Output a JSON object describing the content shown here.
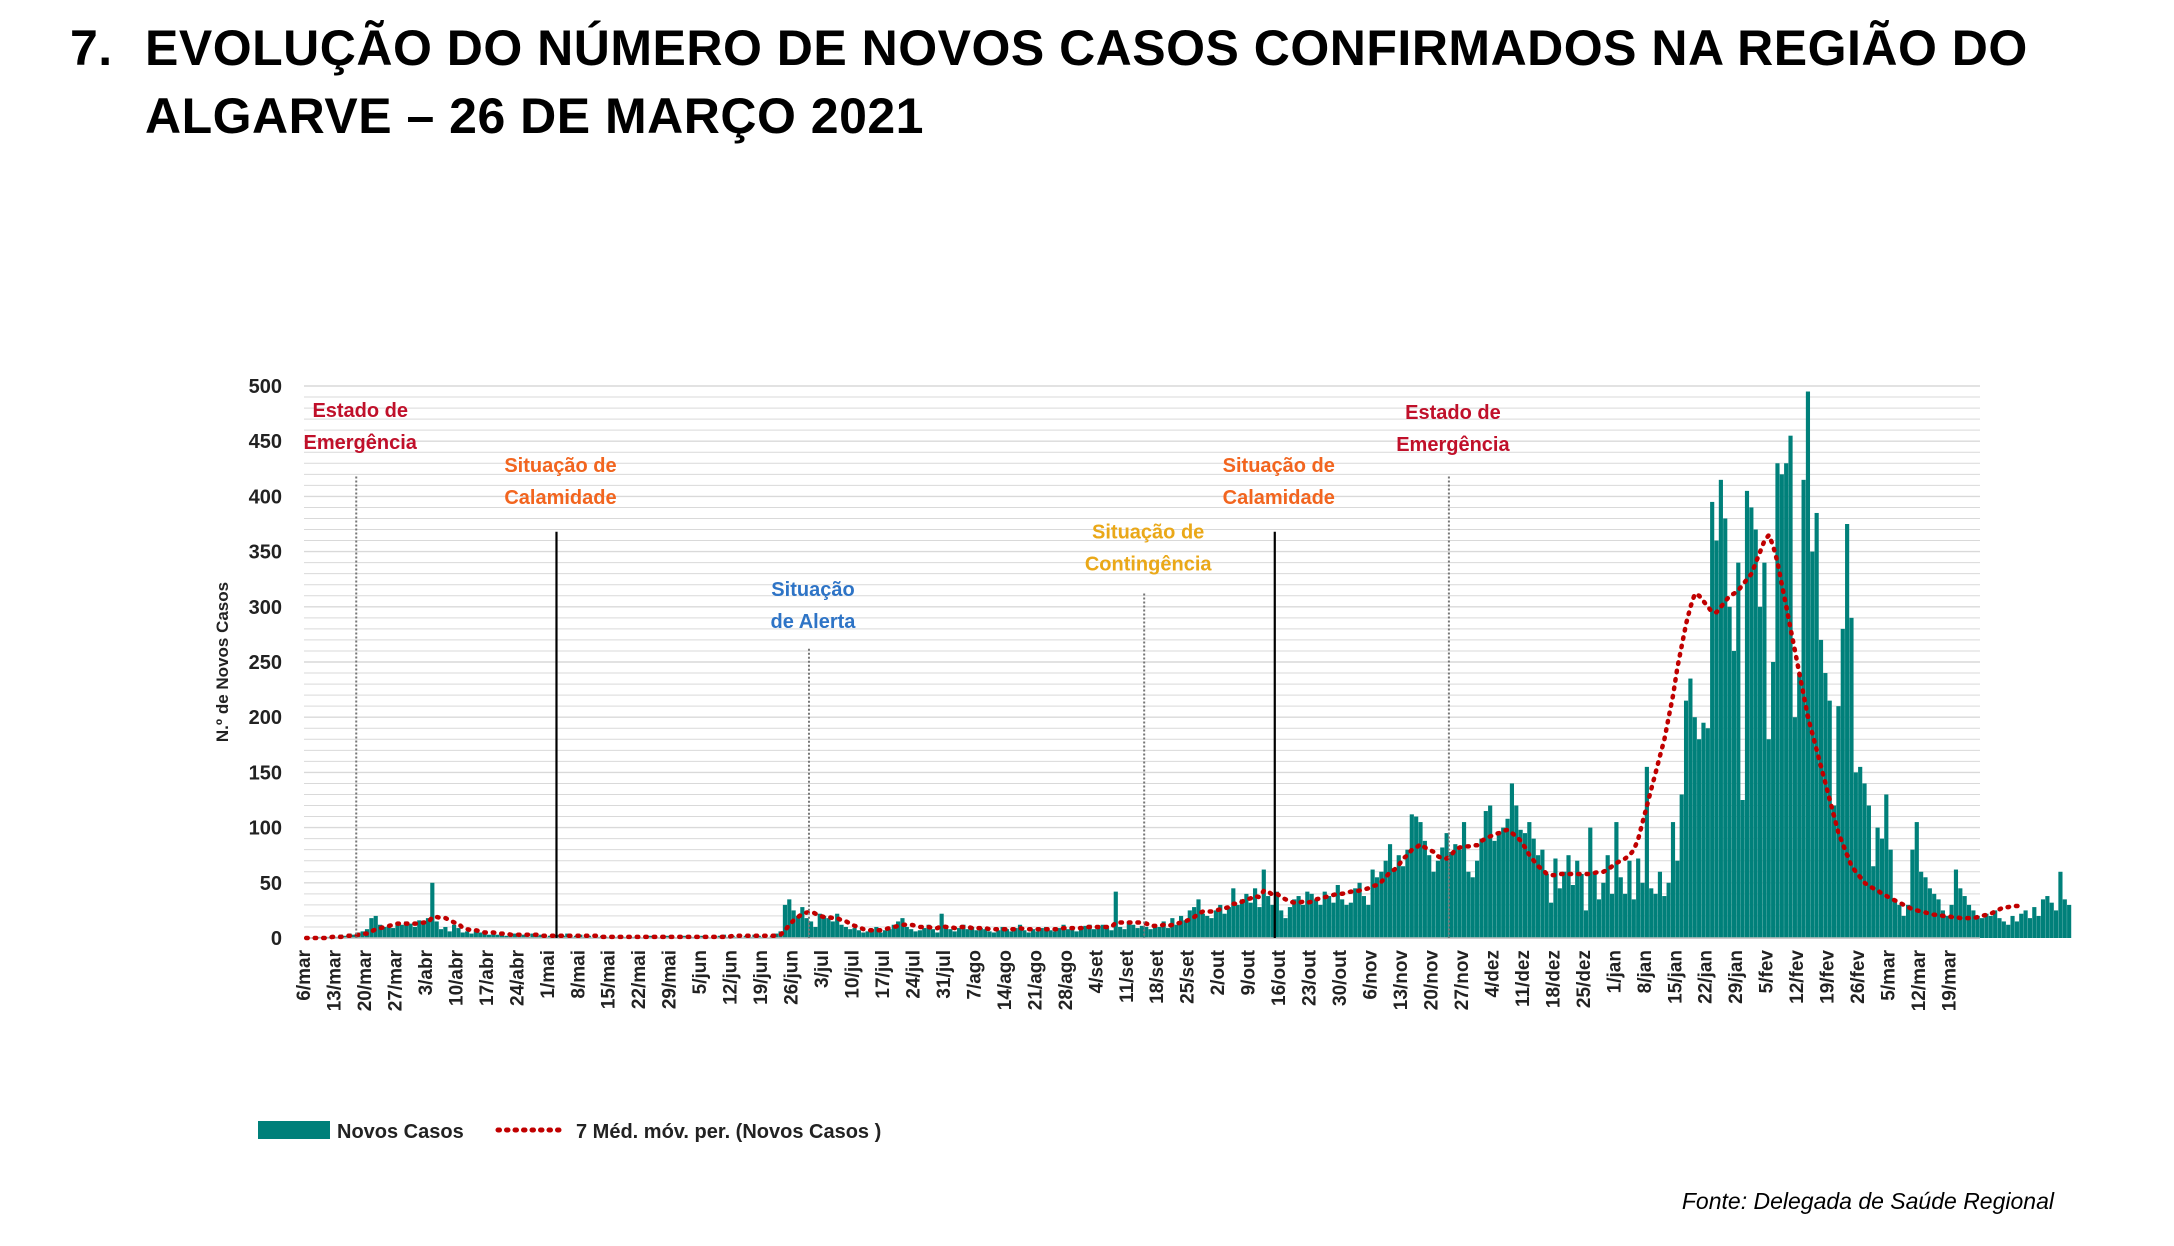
{
  "page": {
    "number": "7.",
    "title": "EVOLUÇÃO DO NÚMERO DE NOVOS CASOS CONFIRMADOS NA REGIÃO DO ALGARVE – 26 DE MARÇO 2021",
    "source": "Fonte: Delegada de Saúde Regional"
  },
  "colors": {
    "bars": "#00807A",
    "moving_average": "#C00000",
    "grid": "#D9D9D9",
    "emergencia": "#C0102A",
    "calamidade": "#F2651F",
    "alerta": "#2E74C6",
    "contingencia": "#EAA818"
  },
  "chart_data": {
    "type": "bar",
    "ylabel": "N.º de Novos Casos",
    "xlabel": "",
    "ylim": [
      0,
      500
    ],
    "yticks": [
      0,
      50,
      100,
      150,
      200,
      250,
      300,
      350,
      400,
      450,
      500
    ],
    "grid": true,
    "legend_position": "bottom-left",
    "x_start": "2020-03-06",
    "x_end": "2021-03-25",
    "x_tick_labels": [
      "6/mar",
      "13/mar",
      "20/mar",
      "27/mar",
      "3/abr",
      "10/abr",
      "17/abr",
      "24/abr",
      "1/mai",
      "8/mai",
      "15/mai",
      "22/mai",
      "29/mai",
      "5/jun",
      "12/jun",
      "19/jun",
      "26/jun",
      "3/jul",
      "10/jul",
      "17/jul",
      "24/jul",
      "31/jul",
      "7/ago",
      "14/ago",
      "21/ago",
      "28/ago",
      "4/set",
      "11/set",
      "18/set",
      "25/set",
      "2/out",
      "9/out",
      "16/out",
      "23/out",
      "30/out",
      "6/nov",
      "13/nov",
      "20/nov",
      "27/nov",
      "4/dez",
      "11/dez",
      "18/dez",
      "25/dez",
      "1/jan",
      "8/jan",
      "15/jan",
      "22/jan",
      "29/jan",
      "5/fev",
      "12/fev",
      "19/fev",
      "26/fev",
      "5/mar",
      "12/mar",
      "19/mar"
    ],
    "series": [
      {
        "name": "Novos Casos",
        "kind": "bar",
        "values": [
          0,
          0,
          0,
          1,
          0,
          1,
          2,
          1,
          3,
          2,
          4,
          3,
          5,
          6,
          8,
          18,
          20,
          12,
          10,
          11,
          9,
          14,
          12,
          15,
          13,
          10,
          16,
          14,
          18,
          50,
          15,
          8,
          10,
          6,
          12,
          9,
          5,
          6,
          4,
          7,
          5,
          4,
          3,
          5,
          3,
          4,
          2,
          3,
          4,
          2,
          3,
          1,
          4,
          2,
          3,
          1,
          2,
          1,
          3,
          2,
          4,
          1,
          2,
          3,
          1,
          2,
          0,
          1,
          2,
          1,
          0,
          1,
          2,
          1,
          0,
          1,
          1,
          0,
          1,
          2,
          1,
          0,
          1,
          2,
          1,
          0,
          1,
          2,
          0,
          1,
          1,
          2,
          1,
          0,
          1,
          2,
          3,
          1,
          2,
          1,
          0,
          2,
          1,
          3,
          2,
          1,
          0,
          2,
          4,
          6,
          30,
          35,
          25,
          20,
          28,
          18,
          15,
          10,
          22,
          20,
          18,
          15,
          22,
          12,
          10,
          8,
          9,
          7,
          5,
          6,
          8,
          10,
          5,
          7,
          8,
          12,
          15,
          18,
          10,
          8,
          6,
          7,
          9,
          12,
          8,
          5,
          22,
          10,
          8,
          6,
          9,
          12,
          8,
          10,
          7,
          9,
          8,
          6,
          5,
          7,
          10,
          8,
          6,
          9,
          12,
          7,
          5,
          8,
          6,
          9,
          10,
          7,
          6,
          9,
          12,
          8,
          10,
          6,
          9,
          11,
          12,
          8,
          10,
          12,
          9,
          7,
          42,
          10,
          8,
          15,
          12,
          9,
          11,
          10,
          8,
          12,
          10,
          15,
          9,
          18,
          12,
          20,
          16,
          25,
          28,
          35,
          22,
          20,
          18,
          25,
          30,
          22,
          28,
          45,
          30,
          35,
          40,
          32,
          45,
          28,
          62,
          38,
          30,
          42,
          25,
          18,
          28,
          35,
          38,
          30,
          42,
          40,
          35,
          30,
          42,
          38,
          32,
          48,
          35,
          30,
          32,
          45,
          50,
          38,
          30,
          62,
          55,
          60,
          70,
          85,
          62,
          75,
          65,
          80,
          112,
          110,
          105,
          88,
          75,
          60,
          70,
          82,
          95,
          78,
          85,
          80,
          105,
          60,
          55,
          70,
          90,
          115,
          120,
          88,
          95,
          100,
          108,
          140,
          120,
          98,
          95,
          105,
          90,
          75,
          80,
          58,
          32,
          72,
          45,
          60,
          75,
          48,
          70,
          58,
          25,
          100,
          60,
          35,
          50,
          75,
          40,
          105,
          55,
          40,
          70,
          35,
          72,
          50,
          155,
          45,
          40,
          60,
          38,
          50,
          105,
          70,
          130,
          215,
          235,
          200,
          180,
          195,
          190,
          395,
          360,
          415,
          380,
          300,
          260,
          340,
          125,
          405,
          390,
          370,
          300,
          340,
          180,
          250,
          430,
          420,
          430,
          455,
          200,
          240,
          415,
          495,
          350,
          385,
          270,
          240,
          215,
          120,
          210,
          280,
          375,
          290,
          150,
          155,
          140,
          120,
          65,
          100,
          90,
          130,
          80,
          35,
          30,
          20,
          30,
          80,
          105,
          60,
          55,
          45,
          40,
          35,
          25,
          20,
          30,
          62,
          45,
          38,
          30,
          25,
          20,
          18,
          22,
          20,
          25,
          18,
          15,
          12,
          20,
          15,
          22,
          25,
          18,
          28,
          20,
          35,
          38,
          32,
          25,
          60,
          35,
          30
        ]
      },
      {
        "name": "7 Méd. móv. per. (Novos Casos )",
        "kind": "line",
        "values": [
          0,
          0,
          0,
          0,
          0,
          0,
          1,
          1,
          1,
          2,
          2,
          2,
          3,
          4,
          4,
          6,
          8,
          9,
          10,
          11,
          12,
          13,
          13,
          13,
          13,
          13,
          13,
          14,
          14,
          19,
          19,
          18,
          18,
          16,
          14,
          13,
          9,
          8,
          7,
          7,
          6,
          5,
          5,
          5,
          4,
          4,
          4,
          3,
          3,
          3,
          3,
          3,
          3,
          3,
          2,
          2,
          2,
          2,
          2,
          2,
          2,
          2,
          2,
          2,
          2,
          2,
          2,
          2,
          1,
          1,
          1,
          1,
          1,
          1,
          1,
          1,
          1,
          1,
          1,
          1,
          1,
          1,
          1,
          1,
          1,
          1,
          1,
          1,
          1,
          1,
          1,
          1,
          1,
          1,
          1,
          1,
          1,
          1,
          2,
          2,
          2,
          2,
          2,
          2,
          2,
          2,
          2,
          2,
          2,
          3,
          7,
          12,
          16,
          19,
          22,
          23,
          24,
          22,
          20,
          19,
          19,
          18,
          18,
          16,
          15,
          13,
          11,
          10,
          8,
          7,
          7,
          7,
          7,
          8,
          9,
          10,
          11,
          12,
          12,
          12,
          11,
          10,
          10,
          10,
          9,
          9,
          11,
          10,
          10,
          9,
          10,
          10,
          10,
          9,
          9,
          9,
          9,
          8,
          8,
          8,
          8,
          8,
          8,
          8,
          9,
          8,
          8,
          8,
          8,
          8,
          8,
          8,
          8,
          8,
          9,
          9,
          9,
          9,
          9,
          10,
          10,
          10,
          10,
          10,
          10,
          10,
          14,
          14,
          14,
          14,
          14,
          14,
          14,
          13,
          11,
          11,
          11,
          12,
          11,
          12,
          13,
          14,
          15,
          17,
          19,
          22,
          24,
          24,
          24,
          25,
          26,
          27,
          28,
          31,
          31,
          33,
          35,
          36,
          38,
          37,
          43,
          42,
          39,
          40,
          37,
          35,
          33,
          32,
          32,
          33,
          32,
          33,
          35,
          36,
          37,
          38,
          39,
          40,
          40,
          41,
          42,
          42,
          43,
          44,
          45,
          47,
          48,
          51,
          55,
          60,
          62,
          66,
          72,
          75,
          80,
          82,
          85,
          82,
          80,
          78,
          74,
          72,
          72,
          75,
          80,
          82,
          83,
          83,
          84,
          84,
          88,
          90,
          92,
          94,
          95,
          97,
          98,
          95,
          92,
          88,
          82,
          75,
          70,
          65,
          62,
          58,
          57,
          57,
          58,
          58,
          58,
          58,
          58,
          58,
          58,
          58,
          59,
          60,
          60,
          62,
          65,
          68,
          70,
          72,
          75,
          80,
          90,
          105,
          120,
          135,
          150,
          165,
          180,
          200,
          220,
          245,
          265,
          285,
          300,
          312,
          310,
          305,
          300,
          295,
          295,
          300,
          305,
          310,
          312,
          315,
          320,
          325,
          330,
          340,
          350,
          360,
          365,
          355,
          340,
          320,
          300,
          280,
          260,
          240,
          220,
          200,
          185,
          170,
          155,
          140,
          125,
          110,
          95,
          85,
          75,
          65,
          60,
          55,
          50,
          47,
          45,
          43,
          40,
          38,
          36,
          34,
          32,
          30,
          28,
          26,
          25,
          24,
          23,
          22,
          21,
          21,
          20,
          20,
          19,
          19,
          18,
          18,
          18,
          18,
          19,
          20,
          21,
          22,
          24,
          26,
          28,
          28,
          29,
          29,
          29
        ]
      }
    ],
    "annotations": [
      {
        "date": "2020-03-18",
        "line1": "Estado de",
        "line2": "Emergência",
        "color_key": "emergencia",
        "line_style": "dotted",
        "y_top": 418,
        "y_text": 472
      },
      {
        "date": "2020-05-03",
        "line1": "Situação de",
        "line2": "Calamidade",
        "color_key": "calamidade",
        "line_style": "solid",
        "y_top": 368,
        "y_text": 422
      },
      {
        "date": "2020-06-30",
        "line1": "Situação",
        "line2": "de Alerta",
        "color_key": "alerta",
        "line_style": "dotted",
        "y_top": 262,
        "y_text": 310
      },
      {
        "date": "2020-09-15",
        "line1": "Situação de",
        "line2": "Contingência",
        "color_key": "contingencia",
        "line_style": "dotted",
        "y_top": 312,
        "y_text": 362
      },
      {
        "date": "2020-10-15",
        "line1": "Situação de",
        "line2": "Calamidade",
        "color_key": "calamidade",
        "line_style": "solid",
        "y_top": 368,
        "y_text": 422
      },
      {
        "date": "2020-11-24",
        "line1": "Estado de",
        "line2": "Emergência",
        "color_key": "emergencia",
        "line_style": "dotted",
        "y_top": 418,
        "y_text": 470
      }
    ]
  }
}
